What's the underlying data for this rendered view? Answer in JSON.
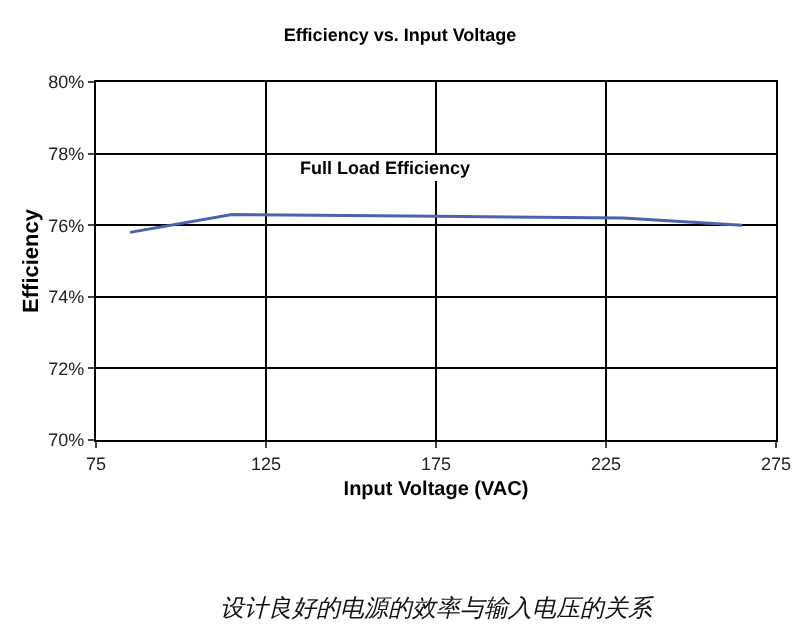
{
  "chart_data": {
    "type": "line",
    "title": "Efficiency vs. Input Voltage",
    "xlabel": "Input Voltage (VAC)",
    "ylabel": "Efficiency",
    "x": [
      85,
      115,
      175,
      230,
      265
    ],
    "series": [
      {
        "name": "Full Load Efficiency",
        "color": "#4a63b0",
        "values": [
          75.8,
          76.3,
          76.25,
          76.2,
          76.0
        ]
      }
    ],
    "xlim": [
      75,
      275
    ],
    "xticks": [
      75,
      125,
      175,
      225,
      275
    ],
    "ylim": [
      70,
      80
    ],
    "yticks": [
      {
        "value": 70,
        "label": "70%"
      },
      {
        "value": 72,
        "label": "72%"
      },
      {
        "value": 74,
        "label": "74%"
      },
      {
        "value": 76,
        "label": "76%"
      },
      {
        "value": 78,
        "label": "78%"
      },
      {
        "value": 80,
        "label": "80%"
      }
    ],
    "grid": true,
    "marker": "none",
    "line_style": "solid",
    "annotations": [
      "设计良好的电源的效率与输入电压的关系"
    ]
  }
}
